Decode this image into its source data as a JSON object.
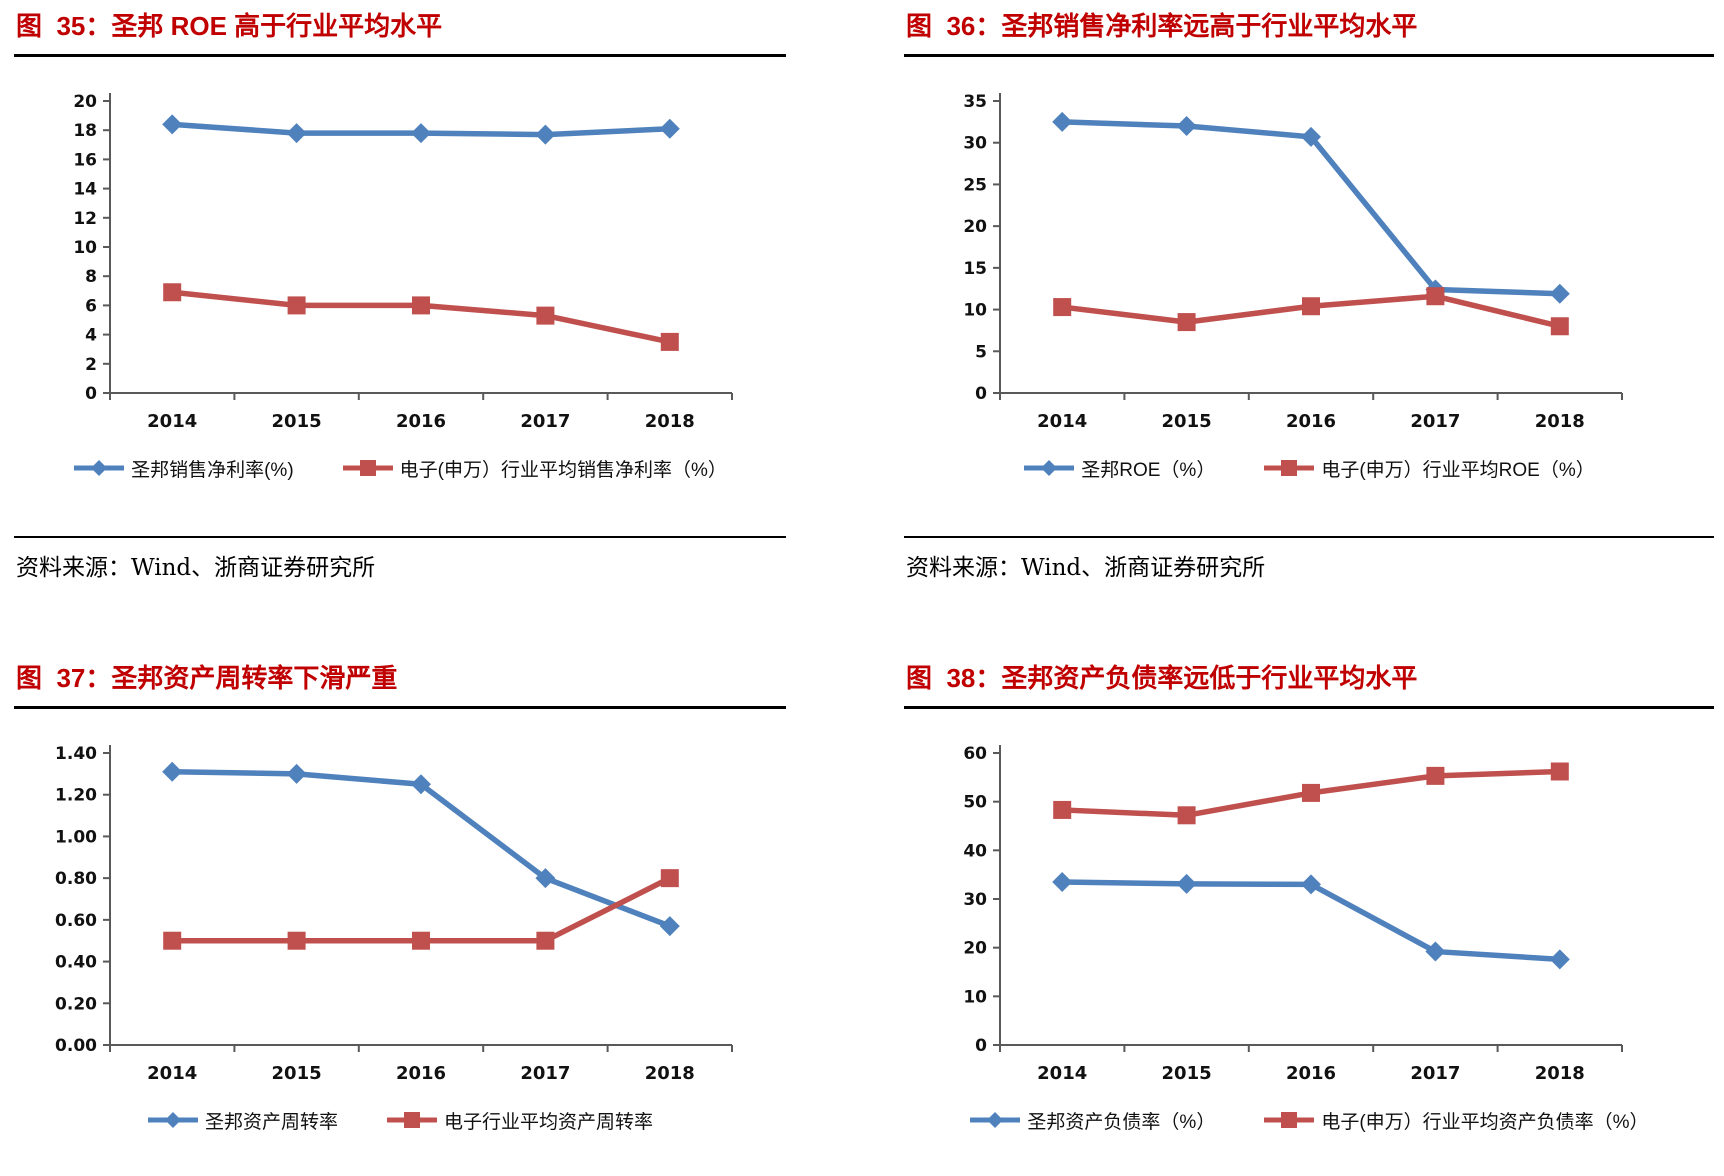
{
  "colors": {
    "title_red": "#C00000",
    "series_blue": "#4F81BD",
    "series_red": "#C0504D",
    "axis_gray": "#595959"
  },
  "source_note": "资料来源：Wind、浙商证券研究所",
  "chart_data": [
    {
      "id": "fig35",
      "type": "line",
      "title": "图  35：圣邦 ROE 高于行业平均水平",
      "categories": [
        "2014",
        "2015",
        "2016",
        "2017",
        "2018"
      ],
      "series": [
        {
          "name": "圣邦销售净利率(%)",
          "marker": "diamond",
          "color": "#4F81BD",
          "values": [
            18.4,
            17.8,
            17.8,
            17.7,
            18.1
          ]
        },
        {
          "name": "电子(申万）行业平均销售净利率（%）",
          "marker": "square",
          "color": "#C0504D",
          "values": [
            6.9,
            6.0,
            6.0,
            5.3,
            3.5
          ]
        }
      ],
      "ylim": [
        0,
        20
      ],
      "ystep": 2,
      "ydecimals": 0,
      "grid": false,
      "legend_position": "bottom",
      "source": "资料来源：Wind、浙商证券研究所"
    },
    {
      "id": "fig36",
      "type": "line",
      "title": "图  36：圣邦销售净利率远高于行业平均水平",
      "categories": [
        "2014",
        "2015",
        "2016",
        "2017",
        "2018"
      ],
      "series": [
        {
          "name": "圣邦ROE（%）",
          "marker": "diamond",
          "color": "#4F81BD",
          "values": [
            32.5,
            32.0,
            30.7,
            12.4,
            11.9
          ]
        },
        {
          "name": "电子(申万）行业平均ROE（%）",
          "marker": "square",
          "color": "#C0504D",
          "values": [
            10.3,
            8.5,
            10.4,
            11.6,
            8.0
          ]
        }
      ],
      "ylim": [
        0,
        35
      ],
      "ystep": 5,
      "ydecimals": 0,
      "grid": false,
      "legend_position": "bottom",
      "source": "资料来源：Wind、浙商证券研究所"
    },
    {
      "id": "fig37",
      "type": "line",
      "title": "图  37：圣邦资产周转率下滑严重",
      "categories": [
        "2014",
        "2015",
        "2016",
        "2017",
        "2018"
      ],
      "series": [
        {
          "name": "圣邦资产周转率",
          "marker": "diamond",
          "color": "#4F81BD",
          "values": [
            1.31,
            1.3,
            1.25,
            0.8,
            0.57
          ]
        },
        {
          "name": "电子行业平均资产周转率",
          "marker": "square",
          "color": "#C0504D",
          "values": [
            0.5,
            0.5,
            0.5,
            0.5,
            0.8
          ]
        }
      ],
      "ylim": [
        0,
        1.4
      ],
      "ystep": 0.2,
      "ydecimals": 2,
      "grid": false,
      "legend_position": "bottom",
      "source": null
    },
    {
      "id": "fig38",
      "type": "line",
      "title": "图  38：圣邦资产负债率远低于行业平均水平",
      "categories": [
        "2014",
        "2015",
        "2016",
        "2017",
        "2018"
      ],
      "series": [
        {
          "name": "圣邦资产负债率（%）",
          "marker": "diamond",
          "color": "#4F81BD",
          "values": [
            33.5,
            33.1,
            33.0,
            19.2,
            17.6
          ]
        },
        {
          "name": "电子(申万）行业平均资产负债率（%）",
          "marker": "square",
          "color": "#C0504D",
          "values": [
            48.3,
            47.2,
            51.8,
            55.3,
            56.2
          ]
        }
      ],
      "ylim": [
        0,
        60
      ],
      "ystep": 10,
      "ydecimals": 0,
      "grid": false,
      "legend_position": "bottom",
      "source": null
    }
  ]
}
